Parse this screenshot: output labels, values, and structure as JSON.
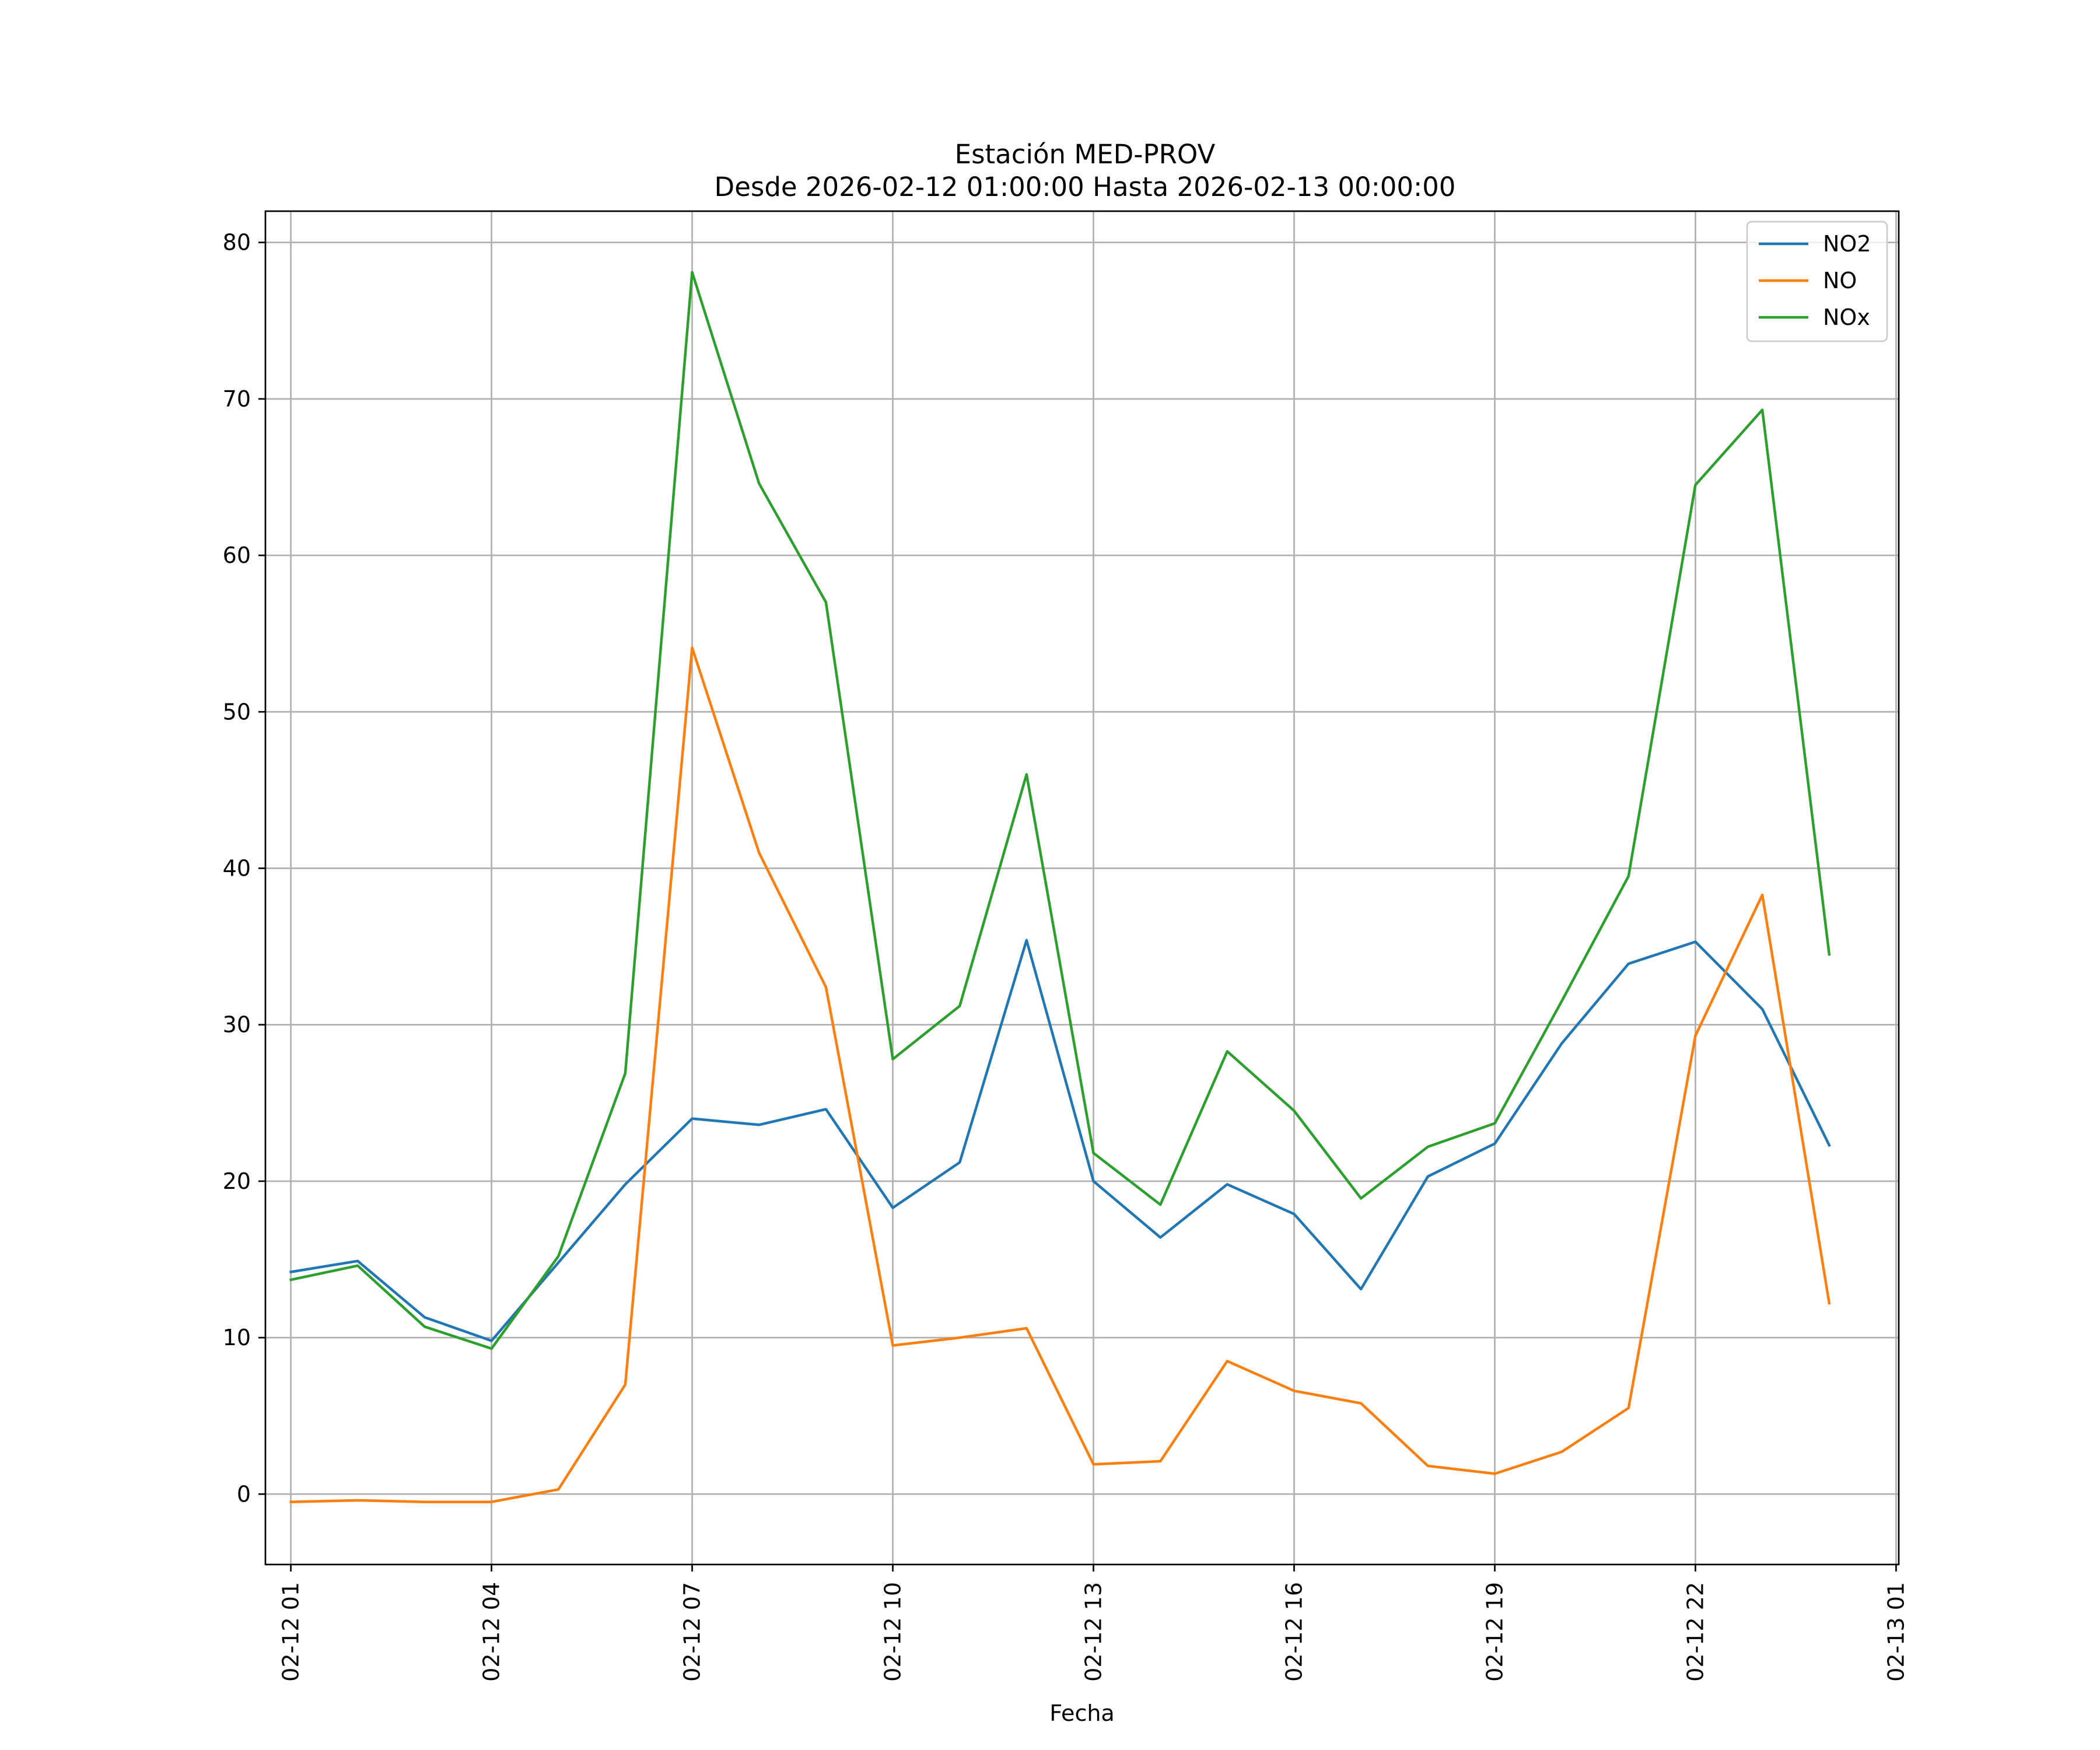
{
  "chart_data": {
    "type": "line",
    "title": "Estación MED-PROV",
    "subtitle": "Desde 2026-02-12 01:00:00 Hasta 2026-02-13 00:00:00",
    "xlabel": "Fecha",
    "ylabel": "",
    "x_hours": [
      1,
      2,
      3,
      4,
      5,
      6,
      7,
      8,
      9,
      10,
      11,
      12,
      13,
      14,
      15,
      16,
      17,
      18,
      19,
      20,
      21,
      22,
      23,
      24
    ],
    "xlim_hours": [
      0.62,
      25.04
    ],
    "x_ticks": [
      {
        "hour": 1,
        "label": "02-12 01"
      },
      {
        "hour": 4,
        "label": "02-12 04"
      },
      {
        "hour": 7,
        "label": "02-12 07"
      },
      {
        "hour": 10,
        "label": "02-12 10"
      },
      {
        "hour": 13,
        "label": "02-12 13"
      },
      {
        "hour": 16,
        "label": "02-12 16"
      },
      {
        "hour": 19,
        "label": "02-12 19"
      },
      {
        "hour": 22,
        "label": "02-12 22"
      },
      {
        "hour": 25,
        "label": "02-13 01"
      }
    ],
    "ylim": [
      -4.5,
      82
    ],
    "y_ticks": [
      0,
      10,
      20,
      30,
      40,
      50,
      60,
      70,
      80
    ],
    "grid": true,
    "legend_position": "top-right",
    "series": [
      {
        "name": "NO2",
        "color": "#1f77b4",
        "values": [
          14.2,
          14.9,
          11.3,
          9.8,
          14.8,
          19.8,
          24.0,
          23.6,
          24.6,
          18.3,
          21.2,
          35.4,
          20.0,
          16.4,
          19.8,
          17.9,
          13.1,
          20.3,
          22.4,
          28.8,
          33.9,
          35.3,
          31.0,
          22.3
        ]
      },
      {
        "name": "NO",
        "color": "#ff7f0e",
        "values": [
          -0.5,
          -0.4,
          -0.5,
          -0.5,
          0.3,
          7.0,
          54.1,
          41.0,
          32.4,
          9.5,
          10.0,
          10.6,
          1.9,
          2.1,
          8.5,
          6.6,
          5.8,
          1.8,
          1.3,
          2.7,
          5.5,
          29.3,
          38.3,
          12.2
        ]
      },
      {
        "name": "NOx",
        "color": "#2ca02c",
        "values": [
          13.7,
          14.6,
          10.7,
          9.3,
          15.2,
          26.9,
          78.1,
          64.6,
          57.0,
          27.8,
          31.2,
          46.0,
          21.8,
          18.5,
          28.3,
          24.5,
          18.9,
          22.2,
          23.7,
          31.5,
          39.5,
          64.5,
          69.3,
          34.5
        ]
      }
    ]
  }
}
